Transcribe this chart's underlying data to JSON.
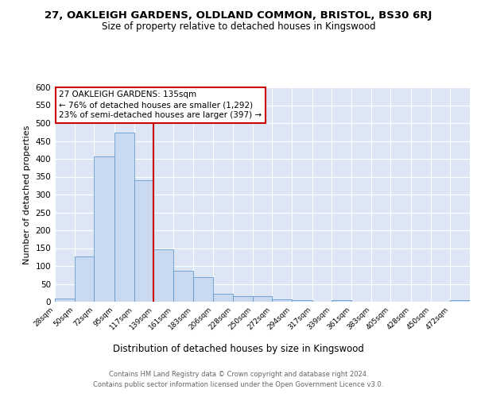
{
  "title": "27, OAKLEIGH GARDENS, OLDLAND COMMON, BRISTOL, BS30 6RJ",
  "subtitle": "Size of property relative to detached houses in Kingswood",
  "xlabel": "Distribution of detached houses by size in Kingswood",
  "ylabel": "Number of detached properties",
  "bin_labels": [
    "28sqm",
    "50sqm",
    "72sqm",
    "95sqm",
    "117sqm",
    "139sqm",
    "161sqm",
    "183sqm",
    "206sqm",
    "228sqm",
    "250sqm",
    "272sqm",
    "294sqm",
    "317sqm",
    "339sqm",
    "361sqm",
    "383sqm",
    "405sqm",
    "428sqm",
    "450sqm",
    "472sqm"
  ],
  "bar_heights": [
    8,
    127,
    407,
    474,
    341,
    146,
    87,
    68,
    22,
    15,
    16,
    7,
    5,
    0,
    5,
    0,
    0,
    0,
    0,
    0,
    5
  ],
  "bar_color": "#c9daf0",
  "bar_edge_color": "#6699cc",
  "background_color": "#dce6f5",
  "grid_color": "#ffffff",
  "vline_x_idx": 5,
  "annotation_line1": "27 OAKLEIGH GARDENS: 135sqm",
  "annotation_line2": "← 76% of detached houses are smaller (1,292)",
  "annotation_line3": "23% of semi-detached houses are larger (397) →",
  "annotation_box_color": "#ffffff",
  "annotation_box_edge": "#cc0000",
  "vline_color": "#cc0000",
  "footer1": "Contains HM Land Registry data © Crown copyright and database right 2024.",
  "footer2": "Contains public sector information licensed under the Open Government Licence v3.0.",
  "ylim": [
    0,
    600
  ],
  "yticks": [
    0,
    50,
    100,
    150,
    200,
    250,
    300,
    350,
    400,
    450,
    500,
    550,
    600
  ],
  "bin_edges": [
    28,
    50,
    72,
    95,
    117,
    139,
    161,
    183,
    206,
    228,
    250,
    272,
    294,
    317,
    339,
    361,
    383,
    405,
    428,
    450,
    472,
    494
  ],
  "fig_bg": "#ffffff",
  "title_fontsize": 9.5,
  "subtitle_fontsize": 8.5,
  "ylabel_fontsize": 8,
  "xlabel_fontsize": 8.5,
  "ytick_fontsize": 7.5,
  "xtick_fontsize": 6.5,
  "footer_fontsize": 6,
  "footer_color": "#666666"
}
